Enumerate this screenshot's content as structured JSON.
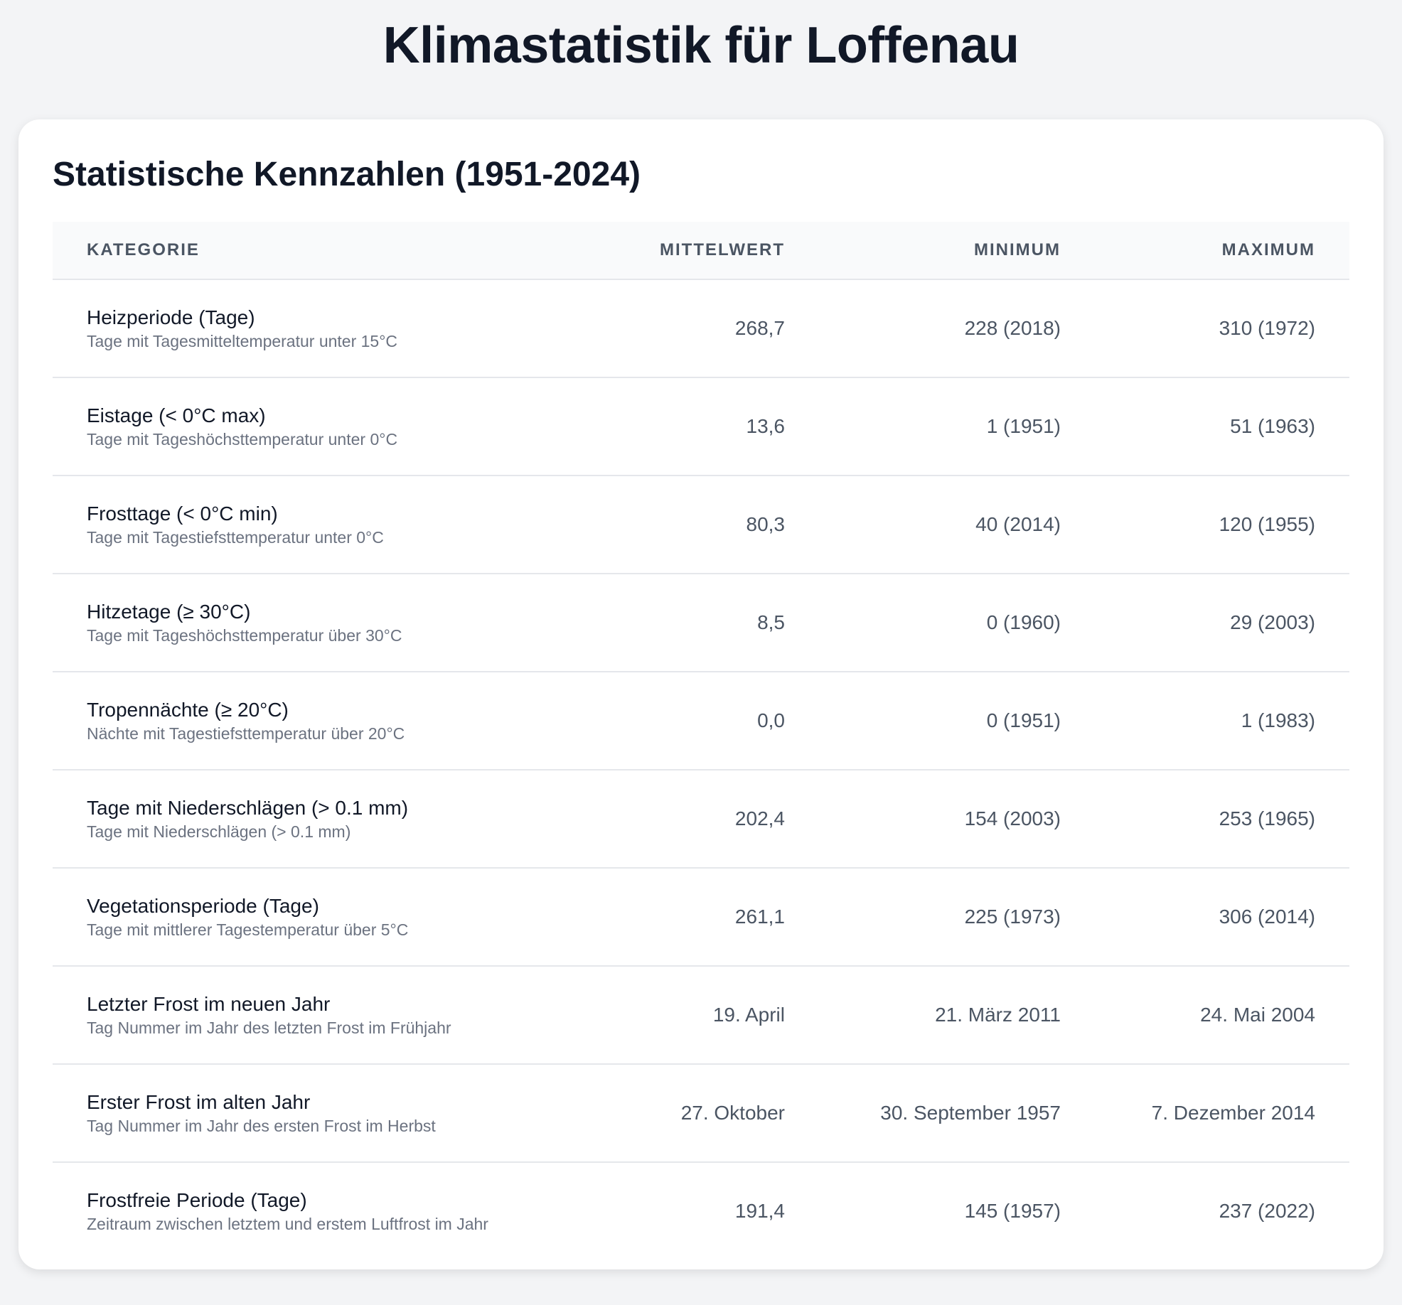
{
  "page": {
    "title": "Klimastatistik für Loffenau"
  },
  "card": {
    "title": "Statistische Kennzahlen (1951-2024)"
  },
  "table": {
    "headers": {
      "category": "KATEGORIE",
      "mean": "MITTELWERT",
      "min": "MINIMUM",
      "max": "MAXIMUM"
    },
    "rows": [
      {
        "name": "Heizperiode (Tage)",
        "desc": "Tage mit Tagesmitteltemperatur unter 15°C",
        "mean": "268,7",
        "min": "228 (2018)",
        "max": "310 (1972)"
      },
      {
        "name": "Eistage (< 0°C max)",
        "desc": "Tage mit Tageshöchsttemperatur unter 0°C",
        "mean": "13,6",
        "min": "1 (1951)",
        "max": "51 (1963)"
      },
      {
        "name": "Frosttage (< 0°C min)",
        "desc": "Tage mit Tagestiefsttemperatur unter 0°C",
        "mean": "80,3",
        "min": "40 (2014)",
        "max": "120 (1955)"
      },
      {
        "name": "Hitzetage (≥ 30°C)",
        "desc": "Tage mit Tageshöchsttemperatur über 30°C",
        "mean": "8,5",
        "min": "0 (1960)",
        "max": "29 (2003)"
      },
      {
        "name": "Tropennächte (≥ 20°C)",
        "desc": "Nächte mit Tagestiefsttemperatur über 20°C",
        "mean": "0,0",
        "min": "0 (1951)",
        "max": "1 (1983)"
      },
      {
        "name": "Tage mit Niederschlägen (> 0.1 mm)",
        "desc": "Tage mit Niederschlägen (> 0.1 mm)",
        "mean": "202,4",
        "min": "154 (2003)",
        "max": "253 (1965)"
      },
      {
        "name": "Vegetationsperiode (Tage)",
        "desc": "Tage mit mittlerer Tagestemperatur über 5°C",
        "mean": "261,1",
        "min": "225 (1973)",
        "max": "306 (2014)"
      },
      {
        "name": "Letzter Frost im neuen Jahr",
        "desc": "Tag Nummer im Jahr des letzten Frost im Frühjahr",
        "mean": "19. April",
        "min": "21. März 2011",
        "max": "24. Mai 2004"
      },
      {
        "name": "Erster Frost im alten Jahr",
        "desc": "Tag Nummer im Jahr des ersten Frost im Herbst",
        "mean": "27. Oktober",
        "min": "30. September 1957",
        "max": "7. Dezember 2014"
      },
      {
        "name": "Frostfreie Periode (Tage)",
        "desc": "Zeitraum zwischen letztem und erstem Luftfrost im Jahr",
        "mean": "191,4",
        "min": "145 (1957)",
        "max": "237 (2022)"
      }
    ]
  }
}
